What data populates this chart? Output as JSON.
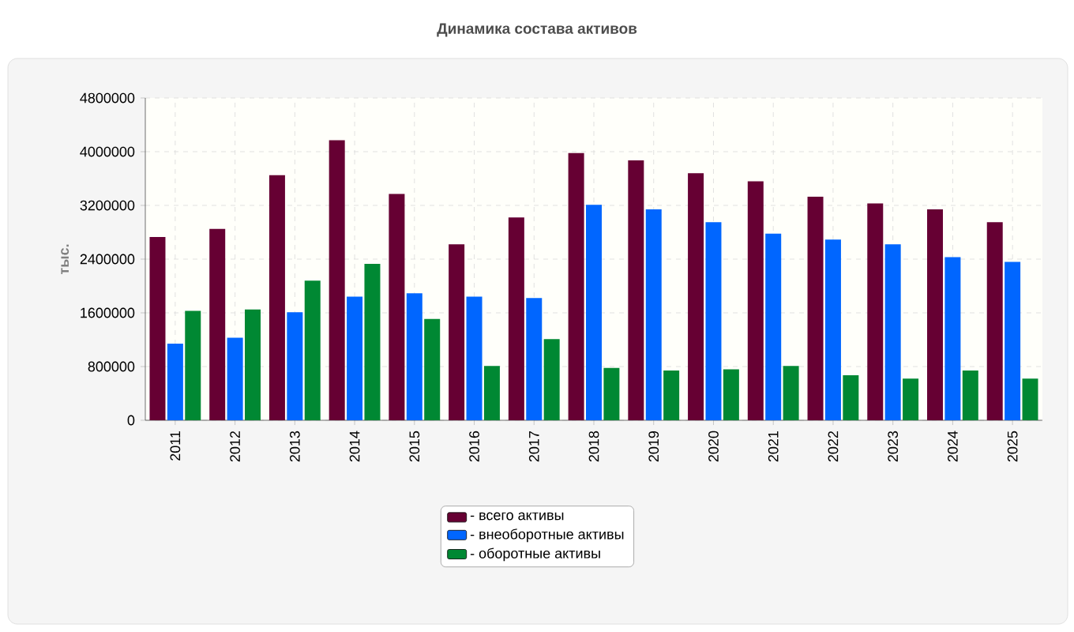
{
  "chart_data": {
    "type": "bar",
    "title": "Динамика состава активов",
    "ylabel": "тыс.",
    "categories": [
      "2011",
      "2012",
      "2013",
      "2014",
      "2015",
      "2016",
      "2017",
      "2018",
      "2019",
      "2020",
      "2021",
      "2022",
      "2023",
      "2024",
      "2025"
    ],
    "series": [
      {
        "name": "- всего активы",
        "color": "#660033",
        "values": [
          2730000,
          2850000,
          3650000,
          4170000,
          3370000,
          2620000,
          3020000,
          3980000,
          3870000,
          3680000,
          3560000,
          3330000,
          3230000,
          3140000,
          2950000
        ]
      },
      {
        "name": "- внеоборотные активы",
        "color": "#0066ff",
        "values": [
          1140000,
          1230000,
          1610000,
          1840000,
          1890000,
          1840000,
          1820000,
          3210000,
          3140000,
          2950000,
          2780000,
          2690000,
          2620000,
          2430000,
          2360000
        ]
      },
      {
        "name": "- оборотные активы",
        "color": "#008833",
        "values": [
          1630000,
          1650000,
          2080000,
          2330000,
          1510000,
          810000,
          1210000,
          780000,
          740000,
          760000,
          810000,
          670000,
          620000,
          740000,
          620000
        ]
      }
    ],
    "ylim": [
      0,
      4800000
    ],
    "yticks": [
      0,
      800000,
      1600000,
      2400000,
      3200000,
      4000000,
      4800000
    ],
    "grid": true,
    "legend": "bottom"
  }
}
